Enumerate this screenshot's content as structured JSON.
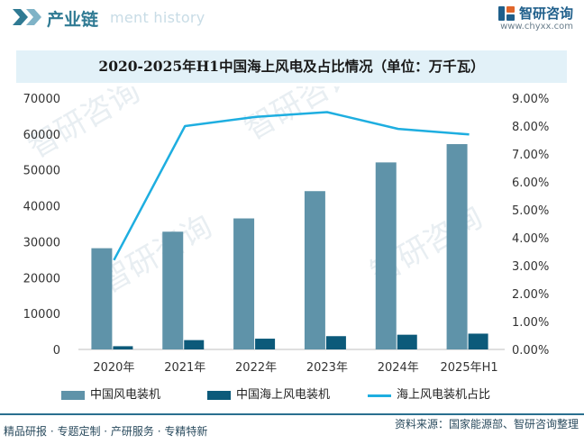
{
  "header": {
    "section_title": "产业链",
    "watermark_text": "ment history",
    "brand_name": "智研咨询",
    "brand_url": "www.chyxx.com"
  },
  "chart_title": "2020-2025年H1中国海上风电及占比情况（单位：万千瓦）",
  "footer": {
    "left_text": "精品研报 · 专题定制 · 产研服务 · 专精特新",
    "source_text": "资料来源：国家能源部、智研咨询整理"
  },
  "colors": {
    "bar_total": "#5f93a9",
    "bar_offshore": "#0c5a7a",
    "line_share": "#1eaee0",
    "accent": "#2a6f8f"
  },
  "chart_data": {
    "type": "bar",
    "categories": [
      "2020年",
      "2021年",
      "2022年",
      "2023年",
      "2024年",
      "2025年H1"
    ],
    "series": [
      {
        "name": "中国风电装机",
        "type": "bar",
        "axis": "left",
        "values": [
          28200,
          32800,
          36500,
          44100,
          52100,
          57200
        ]
      },
      {
        "name": "中国海上风电装机",
        "type": "bar",
        "axis": "left",
        "values": [
          900,
          2600,
          3000,
          3700,
          4100,
          4400
        ]
      },
      {
        "name": "海上风电装机占比",
        "type": "line",
        "axis": "right",
        "values": [
          3.2,
          8.0,
          8.33,
          8.5,
          7.9,
          7.7
        ]
      }
    ],
    "y_left": {
      "min": 0,
      "max": 70000,
      "ticks": [
        "0",
        "10000",
        "20000",
        "30000",
        "40000",
        "50000",
        "60000",
        "70000"
      ]
    },
    "y_right": {
      "min": 0,
      "max": 9,
      "ticks": [
        "0.00%",
        "1.00%",
        "2.00%",
        "3.00%",
        "4.00%",
        "5.00%",
        "6.00%",
        "7.00%",
        "8.00%",
        "9.00%"
      ]
    },
    "legend_position": "bottom",
    "grid": false
  }
}
